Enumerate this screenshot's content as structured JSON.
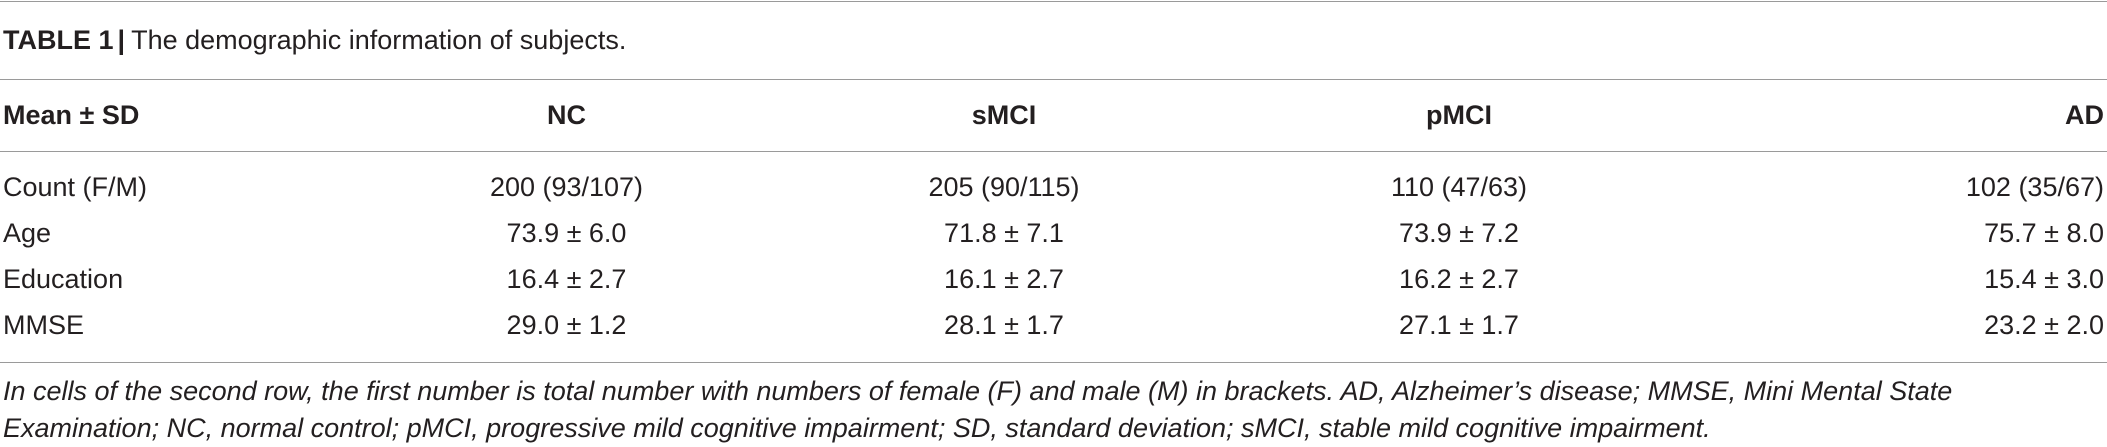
{
  "caption": {
    "label": "TABLE 1",
    "separator": "|",
    "text": "The demographic information of subjects."
  },
  "table": {
    "headers": [
      "Mean ± SD",
      "NC",
      "sMCI",
      "pMCI",
      "AD"
    ],
    "rows": [
      [
        "Count (F/M)",
        "200 (93/107)",
        "205 (90/115)",
        "110 (47/63)",
        "102 (35/67)"
      ],
      [
        "Age",
        "73.9 ± 6.0",
        "71.8 ± 7.1",
        "73.9 ± 7.2",
        "75.7 ± 8.0"
      ],
      [
        "Education",
        "16.4 ± 2.7",
        "16.1 ± 2.7",
        "16.2 ± 2.7",
        "15.4 ± 3.0"
      ],
      [
        "MMSE",
        "29.0 ± 1.2",
        "28.1 ± 1.7",
        "27.1 ± 1.7",
        "23.2 ± 2.0"
      ]
    ]
  },
  "footnote": {
    "line1": "In cells of the second row, the first number is total number with numbers of female (F) and male (M) in brackets. AD, Alzheimer’s disease; MMSE, Mini Mental State",
    "line2": "Examination; NC, normal control; pMCI, progressive mild cognitive impairment; SD, standard deviation; sMCI, stable mild cognitive impairment."
  }
}
